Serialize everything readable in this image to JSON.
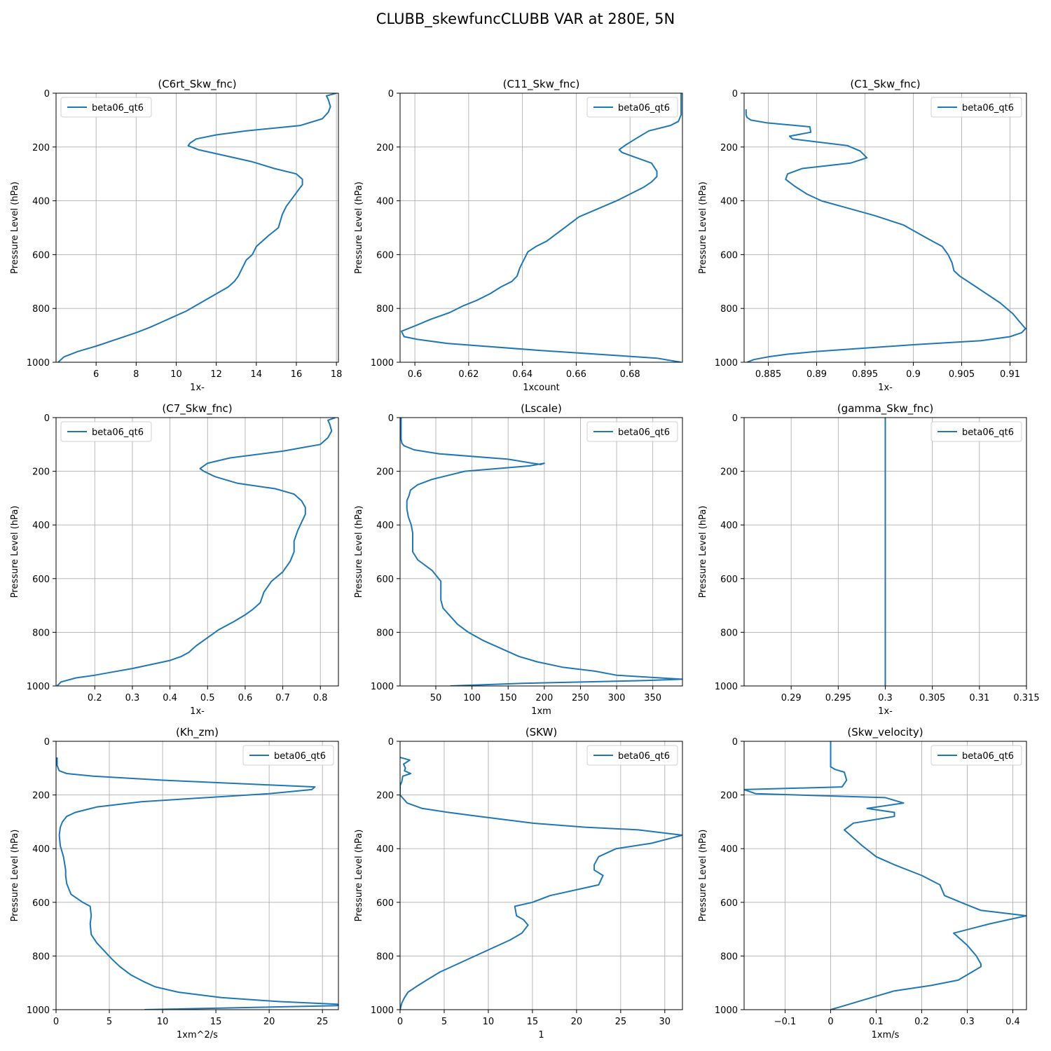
{
  "figure": {
    "title": "CLUBB_skewfuncCLUBB VAR at 280E, 5N"
  },
  "style": {
    "line_color": "#1f77b4",
    "grid_color": "#b0b0b0",
    "background": "#ffffff"
  },
  "chart_data": [
    {
      "type": "line",
      "title": "(C6rt_Skw_fnc)",
      "xlabel": "1x-",
      "ylabel": "Pressure Level (hPa)",
      "xlim": [
        4.0,
        18.1
      ],
      "ylim": [
        1000,
        0
      ],
      "xticks": [
        6,
        8,
        10,
        12,
        14,
        16,
        18
      ],
      "yticks": [
        0,
        200,
        400,
        600,
        800,
        1000
      ],
      "grid": true,
      "legend": "upper left",
      "series": [
        {
          "name": "beta06_qt6",
          "x": [
            18.0,
            17.5,
            17.6,
            17.7,
            17.6,
            17.3,
            16.2,
            13.5,
            12.0,
            11.0,
            10.7,
            10.6,
            11.1,
            12.0,
            13.8,
            14.9,
            16.0,
            16.3,
            16.3,
            16.1,
            15.8,
            15.5,
            15.3,
            15.1,
            14.6,
            14.0,
            13.8,
            13.5,
            13.3,
            13.1,
            12.9,
            12.6,
            11.9,
            11.2,
            10.5,
            9.9,
            9.3,
            8.7,
            8.0,
            7.0,
            6.0,
            5.1,
            4.4,
            4.1
          ],
          "y": [
            0,
            10,
            25,
            50,
            70,
            95,
            120,
            140,
            155,
            170,
            185,
            195,
            210,
            225,
            255,
            280,
            300,
            320,
            340,
            360,
            390,
            420,
            450,
            500,
            530,
            570,
            600,
            620,
            650,
            680,
            700,
            720,
            750,
            780,
            810,
            830,
            850,
            870,
            890,
            915,
            940,
            960,
            980,
            1000
          ]
        }
      ]
    },
    {
      "type": "line",
      "title": "(C11_Skw_fnc)",
      "xlabel": "1xcount",
      "ylabel": "Pressure Level (hPa)",
      "xlim": [
        0.5945,
        0.6995
      ],
      "ylim": [
        1000,
        0
      ],
      "xticks": [
        0.6,
        0.62,
        0.64,
        0.66,
        0.68
      ],
      "yticks": [
        0,
        200,
        400,
        600,
        800,
        1000
      ],
      "grid": true,
      "legend": "upper right",
      "series": [
        {
          "name": "beta06_qt6",
          "x": [
            0.699,
            0.699,
            0.699,
            0.698,
            0.695,
            0.687,
            0.682,
            0.678,
            0.676,
            0.677,
            0.681,
            0.688,
            0.69,
            0.69,
            0.688,
            0.685,
            0.68,
            0.675,
            0.668,
            0.661,
            0.657,
            0.653,
            0.649,
            0.645,
            0.642,
            0.641,
            0.64,
            0.639,
            0.638,
            0.636,
            0.632,
            0.628,
            0.623,
            0.618,
            0.613,
            0.606,
            0.6,
            0.595,
            0.596,
            0.601,
            0.612,
            0.645,
            0.69,
            0.699
          ],
          "y": [
            0,
            30,
            80,
            105,
            120,
            140,
            170,
            195,
            210,
            220,
            235,
            260,
            290,
            310,
            330,
            350,
            375,
            400,
            430,
            460,
            490,
            520,
            550,
            570,
            590,
            610,
            630,
            650,
            680,
            700,
            720,
            745,
            770,
            790,
            815,
            840,
            865,
            885,
            905,
            915,
            930,
            955,
            985,
            1000
          ]
        }
      ]
    },
    {
      "type": "line",
      "title": "(C1_Skw_fnc)",
      "xlabel": "1x-",
      "ylabel": "Pressure Level (hPa)",
      "xlim": [
        0.8825,
        0.9117
      ],
      "ylim": [
        1000,
        0
      ],
      "xticks": [
        0.885,
        0.89,
        0.895,
        0.9,
        0.905,
        0.91
      ],
      "yticks": [
        0,
        200,
        400,
        600,
        800,
        1000
      ],
      "grid": true,
      "legend": "upper right",
      "series": [
        {
          "name": "beta06_qt6",
          "x": [
            0.8827,
            0.8827,
            0.8828,
            0.8832,
            0.8848,
            0.8893,
            0.8894,
            0.8872,
            0.8875,
            0.8932,
            0.8945,
            0.8952,
            0.8935,
            0.8885,
            0.887,
            0.8868,
            0.8877,
            0.889,
            0.8905,
            0.893,
            0.896,
            0.899,
            0.9012,
            0.903,
            0.9036,
            0.904,
            0.9042,
            0.9048,
            0.9065,
            0.909,
            0.9103,
            0.911,
            0.9116,
            0.9112,
            0.91,
            0.907,
            0.9,
            0.894,
            0.89,
            0.887,
            0.885,
            0.8835,
            0.8828
          ],
          "y": [
            60,
            80,
            90,
            100,
            110,
            125,
            145,
            160,
            170,
            195,
            215,
            240,
            260,
            280,
            300,
            320,
            345,
            375,
            400,
            425,
            455,
            490,
            535,
            570,
            600,
            630,
            660,
            680,
            720,
            780,
            820,
            850,
            875,
            890,
            905,
            920,
            935,
            950,
            960,
            970,
            980,
            990,
            1000
          ]
        }
      ]
    },
    {
      "type": "line",
      "title": "(C7_Skw_fnc)",
      "xlabel": "1x-",
      "ylabel": "Pressure Level (hPa)",
      "xlim": [
        0.097,
        0.848
      ],
      "ylim": [
        1000,
        0
      ],
      "xticks": [
        0.2,
        0.3,
        0.4,
        0.5,
        0.6,
        0.7,
        0.8
      ],
      "yticks": [
        0,
        200,
        400,
        600,
        800,
        1000
      ],
      "grid": true,
      "legend": "upper left",
      "series": [
        {
          "name": "beta06_qt6",
          "x": [
            0.84,
            0.82,
            0.825,
            0.83,
            0.82,
            0.8,
            0.7,
            0.56,
            0.5,
            0.48,
            0.49,
            0.52,
            0.58,
            0.68,
            0.73,
            0.75,
            0.76,
            0.76,
            0.75,
            0.74,
            0.73,
            0.73,
            0.72,
            0.7,
            0.67,
            0.65,
            0.64,
            0.62,
            0.6,
            0.57,
            0.53,
            0.5,
            0.47,
            0.45,
            0.43,
            0.4,
            0.35,
            0.3,
            0.24,
            0.2,
            0.15,
            0.11,
            0.1
          ],
          "y": [
            0,
            10,
            25,
            50,
            75,
            100,
            125,
            150,
            170,
            190,
            200,
            220,
            245,
            265,
            285,
            310,
            335,
            360,
            390,
            420,
            460,
            500,
            535,
            575,
            610,
            650,
            690,
            715,
            735,
            760,
            790,
            820,
            850,
            875,
            890,
            905,
            920,
            935,
            950,
            960,
            970,
            985,
            1000
          ]
        }
      ]
    },
    {
      "type": "line",
      "title": "(Lscale)",
      "xlabel": "1xm",
      "ylabel": "Pressure Level (hPa)",
      "xlim": [
        0.6,
        391
      ],
      "ylim": [
        1000,
        0
      ],
      "xticks": [
        50,
        100,
        150,
        200,
        250,
        300,
        350
      ],
      "yticks": [
        0,
        200,
        400,
        600,
        800,
        1000
      ],
      "grid": true,
      "legend": "upper right",
      "series": [
        {
          "name": "beta06_qt6",
          "x": [
            2,
            2,
            2,
            2,
            3,
            6,
            20,
            55,
            150,
            195,
            200,
            180,
            90,
            45,
            25,
            15,
            13,
            10,
            10,
            12,
            16,
            18,
            18,
            18,
            25,
            45,
            57,
            57,
            60,
            70,
            80,
            95,
            115,
            140,
            165,
            190,
            225,
            270,
            300,
            360,
            391,
            340,
            170,
            70
          ],
          "y": [
            0,
            30,
            60,
            80,
            95,
            105,
            120,
            135,
            155,
            175,
            170,
            180,
            200,
            230,
            250,
            270,
            290,
            310,
            340,
            370,
            400,
            430,
            470,
            500,
            530,
            570,
            610,
            680,
            710,
            740,
            770,
            800,
            830,
            860,
            890,
            910,
            930,
            945,
            960,
            970,
            975,
            980,
            990,
            1000
          ]
        }
      ]
    },
    {
      "type": "line",
      "title": "(gamma_Skw_fnc)",
      "xlabel": "1x-",
      "ylabel": "Pressure Level (hPa)",
      "xlim": [
        0.285,
        0.315
      ],
      "ylim": [
        1000,
        0
      ],
      "xticks": [
        0.29,
        0.295,
        0.3,
        0.305,
        0.31,
        0.315
      ],
      "yticks": [
        0,
        200,
        400,
        600,
        800,
        1000
      ],
      "grid": true,
      "legend": "upper right",
      "series": [
        {
          "name": "beta06_qt6",
          "x": [
            0.3,
            0.3
          ],
          "y": [
            0,
            1000
          ]
        }
      ]
    },
    {
      "type": "line",
      "title": "(Kh_zm)",
      "xlabel": "1xm^2/s",
      "ylabel": "Pressure Level (hPa)",
      "xlim": [
        0,
        26.5
      ],
      "ylim": [
        1000,
        0
      ],
      "xticks": [
        0,
        5,
        10,
        15,
        20,
        25
      ],
      "yticks": [
        0,
        200,
        400,
        600,
        800,
        1000
      ],
      "grid": true,
      "legend": "upper right",
      "series": [
        {
          "name": "beta06_qt6",
          "x": [
            0.1,
            0.1,
            0.1,
            0.2,
            0.3,
            1.0,
            3.5,
            10.0,
            18.5,
            24.3,
            24.0,
            20.0,
            8.0,
            3.8,
            1.8,
            1.0,
            0.6,
            0.4,
            0.3,
            0.4,
            0.7,
            0.9,
            0.9,
            1.0,
            1.4,
            2.5,
            3.2,
            3.3,
            3.2,
            3.3,
            3.8,
            4.5,
            5.2,
            6.0,
            7.0,
            8.2,
            9.3,
            11.5,
            15.5,
            21.0,
            26.4,
            26.4,
            8.3
          ],
          "y": [
            60,
            80,
            90,
            100,
            110,
            120,
            130,
            145,
            160,
            170,
            180,
            195,
            225,
            245,
            265,
            280,
            300,
            320,
            350,
            390,
            430,
            480,
            500,
            530,
            570,
            600,
            615,
            650,
            680,
            720,
            750,
            780,
            810,
            840,
            870,
            895,
            915,
            935,
            955,
            970,
            980,
            985,
            1000
          ]
        }
      ]
    },
    {
      "type": "line",
      "title": "(SKW)",
      "xlabel": "1",
      "ylabel": "Pressure Level (hPa)",
      "xlim": [
        0,
        32
      ],
      "ylim": [
        1000,
        0
      ],
      "xticks": [
        0,
        5,
        10,
        15,
        20,
        25,
        30
      ],
      "yticks": [
        0,
        200,
        400,
        600,
        800,
        1000
      ],
      "grid": true,
      "legend": "upper right",
      "series": [
        {
          "name": "beta06_qt6",
          "x": [
            0.0,
            1.1,
            0.4,
            0.6,
            0.5,
            1.2,
            0.3,
            0.2,
            0.0,
            0.0,
            0.8,
            2.5,
            5.5,
            9.0,
            15.0,
            21.0,
            27.0,
            32.0,
            28.5,
            24.5,
            22.5,
            22.0,
            22.0,
            23.0,
            22.5,
            17.0,
            15.0,
            13.0,
            13.2,
            14.0,
            14.5,
            13.8,
            12.5,
            10.5,
            8.5,
            6.5,
            4.5,
            3.0,
            1.8,
            0.9,
            0.5,
            0.2,
            0.0
          ],
          "y": [
            60,
            70,
            85,
            100,
            110,
            120,
            130,
            150,
            165,
            200,
            230,
            250,
            265,
            280,
            305,
            320,
            330,
            350,
            380,
            400,
            430,
            460,
            480,
            500,
            535,
            575,
            600,
            615,
            650,
            665,
            685,
            715,
            740,
            770,
            800,
            830,
            860,
            890,
            915,
            935,
            955,
            975,
            1000
          ]
        }
      ]
    },
    {
      "type": "line",
      "title": "(Skw_velocity)",
      "xlabel": "1xm/s",
      "ylabel": "Pressure Level (hPa)",
      "xlim": [
        -0.19,
        0.43
      ],
      "ylim": [
        1000,
        0
      ],
      "xticks": [
        -0.1,
        0.0,
        0.1,
        0.2,
        0.3,
        0.4
      ],
      "yticks": [
        0,
        200,
        400,
        600,
        800,
        1000
      ],
      "grid": true,
      "legend": "upper right",
      "series": [
        {
          "name": "beta06_qt6",
          "x": [
            0.0,
            0.0,
            0.0,
            0.0,
            0.01,
            0.03,
            0.035,
            0.025,
            -0.19,
            -0.165,
            0.12,
            0.16,
            0.08,
            0.14,
            0.14,
            0.05,
            0.03,
            0.05,
            0.07,
            0.1,
            0.14,
            0.2,
            0.24,
            0.25,
            0.3,
            0.33,
            0.43,
            0.35,
            0.27,
            0.3,
            0.32,
            0.33,
            0.33,
            0.31,
            0.28,
            0.22,
            0.14,
            0.1,
            0.07,
            0.03,
            0.0
          ],
          "y": [
            0,
            30,
            70,
            95,
            105,
            115,
            145,
            170,
            180,
            195,
            210,
            230,
            250,
            265,
            280,
            305,
            330,
            360,
            390,
            430,
            460,
            500,
            535,
            575,
            610,
            630,
            650,
            680,
            715,
            760,
            800,
            830,
            840,
            860,
            890,
            910,
            930,
            950,
            965,
            985,
            1000
          ]
        }
      ]
    }
  ]
}
